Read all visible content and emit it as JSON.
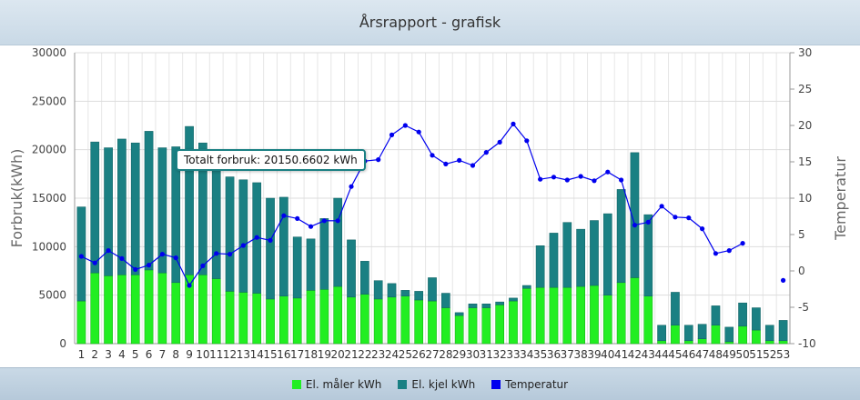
{
  "header": {
    "title": "Årsrapport - grafisk"
  },
  "tooltip": {
    "text": "Totalt forbruk: 20150.6602 kWh"
  },
  "colors": {
    "el": "#22ee22",
    "kjel": "#1a8083",
    "temp": "#0000ee"
  },
  "chart_data": {
    "type": "bar",
    "stacked": true,
    "categories": [
      "1",
      "2",
      "3",
      "4",
      "5",
      "6",
      "7",
      "8",
      "9",
      "10",
      "11",
      "12",
      "13",
      "14",
      "15",
      "16",
      "17",
      "18",
      "19",
      "20",
      "21",
      "22",
      "23",
      "24",
      "25",
      "26",
      "27",
      "28",
      "29",
      "30",
      "31",
      "32",
      "33",
      "34",
      "35",
      "36",
      "37",
      "38",
      "39",
      "40",
      "41",
      "42",
      "43",
      "44",
      "45",
      "46",
      "47",
      "48",
      "49",
      "50",
      "51",
      "52",
      "53"
    ],
    "series": [
      {
        "name": "El. måler kWh",
        "color": "#22ee22",
        "axis": "left",
        "values": [
          4400,
          7300,
          7000,
          7100,
          7100,
          7600,
          7300,
          6300,
          7100,
          7100,
          6700,
          5400,
          5300,
          5200,
          4600,
          4900,
          4700,
          5500,
          5600,
          5900,
          4800,
          5100,
          4600,
          4800,
          4900,
          4500,
          4400,
          3700,
          2900,
          3700,
          3700,
          4000,
          4400,
          5700,
          5800,
          5800,
          5800,
          5900,
          6000,
          5000,
          6300,
          6800,
          4900,
          300,
          1900,
          300,
          500,
          1900,
          200,
          1800,
          1400,
          300,
          300
        ]
      },
      {
        "name": "El. kjel kWh",
        "color": "#1a8083",
        "axis": "left",
        "values": [
          9700,
          13500,
          13200,
          14000,
          13600,
          14300,
          12900,
          14000,
          15300,
          13600,
          13100,
          11800,
          11600,
          11400,
          10400,
          10200,
          6300,
          5300,
          7300,
          9100,
          5900,
          3400,
          1900,
          1400,
          600,
          900,
          2400,
          1500,
          300,
          400,
          400,
          300,
          300,
          300,
          4300,
          5600,
          6700,
          5900,
          6700,
          8400,
          9600,
          12900,
          8400,
          1600,
          3400,
          1600,
          1500,
          2000,
          1500,
          2400,
          2300,
          1600,
          2100
        ]
      },
      {
        "name": "Temperatur",
        "color": "#0000ee",
        "axis": "right",
        "type": "line",
        "values": [
          2.0,
          1.1,
          2.8,
          1.7,
          0.2,
          0.8,
          2.3,
          1.8,
          -2.0,
          0.7,
          2.4,
          2.3,
          3.5,
          4.6,
          4.2,
          7.6,
          7.2,
          6.1,
          6.9,
          6.9,
          11.6,
          15.1,
          15.3,
          18.7,
          20.0,
          19.1,
          15.9,
          14.7,
          15.2,
          14.5,
          16.3,
          17.7,
          20.2,
          17.9,
          12.6,
          12.9,
          12.5,
          13.0,
          12.4,
          13.6,
          12.5,
          6.3,
          6.7,
          8.9,
          7.4,
          7.3,
          5.8,
          2.4,
          2.8,
          3.8,
          null,
          null,
          -1.3
        ]
      }
    ],
    "ylabel": "Forbruk(kWh)",
    "ylabel_right": "Temperatur",
    "ylim": [
      0,
      30000
    ],
    "yticks": [
      "0",
      "5000",
      "10000",
      "15000",
      "20000",
      "25000",
      "30000"
    ],
    "ylim_right": [
      -10,
      30
    ],
    "yticks_right": [
      "-10",
      "-5",
      "0",
      "5",
      "10",
      "15",
      "20",
      "25",
      "30"
    ],
    "grid": true,
    "legend_position": "bottom"
  }
}
